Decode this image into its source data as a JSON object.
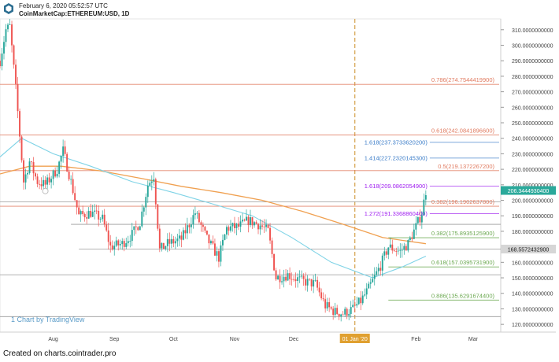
{
  "header": {
    "timestamp": "February 6, 2020 05:52:57 UTC",
    "symbol": "CoinMarketCap:ETHEREUM:USD, 1D"
  },
  "watermark": "1 Chart by TradingView",
  "footer": {
    "credit": "Created on charts.cointrader.pro"
  },
  "colors": {
    "bull": "#26a69a",
    "bear": "#ef5350",
    "fib_retrace": "#e07a5f",
    "fib_support": "#6aa84f",
    "fib_ext_blue": "#3d7ec9",
    "fib_ext_purple": "#a020f0",
    "ma_fast": "#7fd3e6",
    "ma_slow": "#f0a050",
    "vline": "#d4a04a",
    "price_tag": "#2ba99b"
  },
  "chart_data": {
    "type": "candlestick",
    "ylim": [
      115,
      317
    ],
    "x_range": [
      "2019-07-05",
      "2020-03-15"
    ],
    "y_ticks": [
      "120.0000000000",
      "130.0000000000",
      "140.0000000000",
      "150.0000000000",
      "160.0000000000",
      "170.0000000000",
      "180.0000000000",
      "190.0000000000",
      "200.0000000000",
      "210.0000000000",
      "220.0000000000",
      "230.0000000000",
      "240.0000000000",
      "250.0000000000",
      "260.0000000000",
      "270.0000000000",
      "280.0000000000",
      "290.0000000000",
      "300.0000000000",
      "310.0000000000"
    ],
    "x_ticks": [
      {
        "label": "Aug",
        "date": "2019-08-01"
      },
      {
        "label": "Sep",
        "date": "2019-09-01"
      },
      {
        "label": "Oct",
        "date": "2019-10-01"
      },
      {
        "label": "Nov",
        "date": "2019-11-01"
      },
      {
        "label": "Dec",
        "date": "2019-12-01"
      },
      {
        "label": "01 Jan '20",
        "date": "2020-01-01",
        "highlight": true
      },
      {
        "label": "Feb",
        "date": "2020-02-01"
      },
      {
        "label": "Mar",
        "date": "2020-03-01"
      }
    ],
    "vertical_marker": {
      "date": "2020-01-01"
    },
    "last_price": {
      "value": 206.34449304,
      "label": "206.3444930400"
    },
    "marker_price": {
      "value": 168.55724329,
      "label": "168.5572432900"
    },
    "levels": [
      {
        "label": "0.786(274.7544419900)",
        "value": 274.75444199,
        "kind": "retrace"
      },
      {
        "label": "0.618(242.0841896600)",
        "value": 242.08418966,
        "kind": "retrace"
      },
      {
        "label": "0.5(219.1372267200)",
        "value": 219.13722672,
        "kind": "retrace"
      },
      {
        "label": "0.382(196.1902637800)",
        "value": 196.19026378,
        "kind": "retrace"
      },
      {
        "label": "0.382(175.8935125900)",
        "value": 175.89351259,
        "kind": "support"
      },
      {
        "label": "0.618(157.0395731900)",
        "value": 157.03957319,
        "kind": "support"
      },
      {
        "label": "0.886(135.6291674400)",
        "value": 135.62916744,
        "kind": "support"
      },
      {
        "label": "1.618(237.3733620200)",
        "value": 237.37336202,
        "kind": "ext_blue"
      },
      {
        "label": "1.414(227.2320145300)",
        "value": 227.23201453,
        "kind": "ext_blue"
      },
      {
        "label": "1.618(209.0862054900)",
        "value": 209.08620549,
        "kind": "ext_purple"
      },
      {
        "label": "1.272(191.3368860400)",
        "value": 191.33688604,
        "kind": "ext_purple"
      }
    ],
    "price_path": [
      [
        "2019-07-05",
        290
      ],
      [
        "2019-07-08",
        310
      ],
      [
        "2019-07-10",
        312
      ],
      [
        "2019-07-13",
        272
      ],
      [
        "2019-07-17",
        212
      ],
      [
        "2019-07-20",
        225
      ],
      [
        "2019-07-24",
        212
      ],
      [
        "2019-07-28",
        210
      ],
      [
        "2019-08-03",
        220
      ],
      [
        "2019-08-06",
        232
      ],
      [
        "2019-08-10",
        212
      ],
      [
        "2019-08-14",
        190
      ],
      [
        "2019-08-20",
        192
      ],
      [
        "2019-08-26",
        188
      ],
      [
        "2019-08-30",
        170
      ],
      [
        "2019-09-05",
        172
      ],
      [
        "2019-09-10",
        178
      ],
      [
        "2019-09-14",
        186
      ],
      [
        "2019-09-18",
        210
      ],
      [
        "2019-09-21",
        216
      ],
      [
        "2019-09-24",
        168
      ],
      [
        "2019-09-28",
        172
      ],
      [
        "2019-10-05",
        175
      ],
      [
        "2019-10-12",
        192
      ],
      [
        "2019-10-18",
        175
      ],
      [
        "2019-10-24",
        163
      ],
      [
        "2019-10-28",
        182
      ],
      [
        "2019-11-03",
        183
      ],
      [
        "2019-11-08",
        187
      ],
      [
        "2019-11-14",
        184
      ],
      [
        "2019-11-18",
        180
      ],
      [
        "2019-11-22",
        150
      ],
      [
        "2019-11-28",
        152
      ],
      [
        "2019-12-05",
        148
      ],
      [
        "2019-12-12",
        146
      ],
      [
        "2019-12-17",
        132
      ],
      [
        "2019-12-22",
        128
      ],
      [
        "2019-12-26",
        127
      ],
      [
        "2019-12-31",
        130
      ],
      [
        "2020-01-04",
        135
      ],
      [
        "2020-01-08",
        143
      ],
      [
        "2020-01-14",
        158
      ],
      [
        "2020-01-18",
        170
      ],
      [
        "2020-01-24",
        167
      ],
      [
        "2020-01-28",
        172
      ],
      [
        "2020-02-01",
        183
      ],
      [
        "2020-02-04",
        192
      ],
      [
        "2020-02-06",
        206
      ]
    ],
    "ma_fast": [
      [
        "2019-07-05",
        228
      ],
      [
        "2019-07-16",
        240
      ],
      [
        "2019-08-01",
        230
      ],
      [
        "2019-08-20",
        222
      ],
      [
        "2019-09-10",
        212
      ],
      [
        "2019-10-01",
        205
      ],
      [
        "2019-10-20",
        198
      ],
      [
        "2019-11-10",
        190
      ],
      [
        "2019-11-30",
        176
      ],
      [
        "2019-12-20",
        160
      ],
      [
        "2020-01-10",
        150
      ],
      [
        "2020-01-25",
        157
      ],
      [
        "2020-02-06",
        164
      ]
    ],
    "ma_slow": [
      [
        "2019-07-05",
        217
      ],
      [
        "2019-07-20",
        222
      ],
      [
        "2019-08-05",
        222
      ],
      [
        "2019-08-25",
        219
      ],
      [
        "2019-09-15",
        214
      ],
      [
        "2019-10-05",
        209
      ],
      [
        "2019-10-25",
        205
      ],
      [
        "2019-11-15",
        200
      ],
      [
        "2019-12-05",
        193
      ],
      [
        "2019-12-25",
        185
      ],
      [
        "2020-01-15",
        176
      ],
      [
        "2020-02-06",
        172
      ]
    ]
  }
}
